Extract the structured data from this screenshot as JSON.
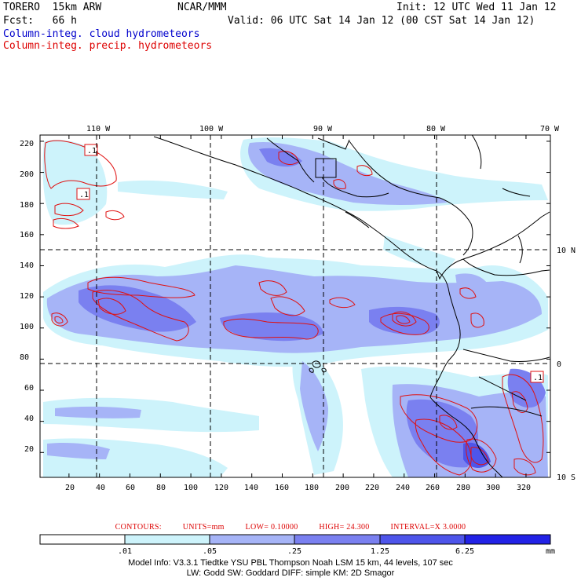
{
  "header": {
    "model": "TORERO  15km ARW",
    "center": "NCAR/MMM",
    "init": "Init: 12 UTC Wed 11 Jan 12",
    "fcst": "Fcst:   66 h",
    "valid": "Valid: 06 UTC Sat 14 Jan 12 (00 CST Sat 14 Jan 12)",
    "field_cloud": "Column-integ. cloud hydrometeors",
    "field_precip": "Column-integ. precip. hydrometeors"
  },
  "map": {
    "top_lon_labels": [
      "110 W",
      "100 W",
      "90 W",
      "80 W",
      "70 W"
    ],
    "right_lat_labels": [
      "10 N",
      "0",
      "10 S"
    ],
    "left_grid_labels": [
      "220",
      "200",
      "180",
      "160",
      "140",
      "120",
      "100",
      "80",
      "60",
      "40",
      "20"
    ],
    "bottom_grid_labels": [
      "20",
      "40",
      "60",
      "80",
      "100",
      "120",
      "140",
      "160",
      "180",
      "200",
      "220",
      "240",
      "260",
      "280",
      "300",
      "320"
    ],
    "contour_labels": [
      ".1",
      ".1",
      ".1"
    ]
  },
  "contours_info": {
    "contours": "CONTOURS:",
    "units": "UNITS=mm",
    "low": "LOW= 0.10000",
    "high": "HIGH=  24.300",
    "interval": "INTERVAL=X  3.0000"
  },
  "colorbar": {
    "tick_labels": [
      ".01",
      ".05",
      ".25",
      "1.25",
      "6.25"
    ],
    "unit": "mm",
    "colors": [
      "#ffffff",
      "#cdf3fb",
      "#a6b4f7",
      "#7a80f0",
      "#4e55ea",
      "#2222e6"
    ]
  },
  "model_info": {
    "line1": "Model Info: V3.3.1   Tiedtke YSU PBL   Thompson    Noah LSM  15 km,   44 levels,  107 sec",
    "line2": "LW: Godd SW: Goddard DIFF: simple KM: 2D Smagor"
  }
}
